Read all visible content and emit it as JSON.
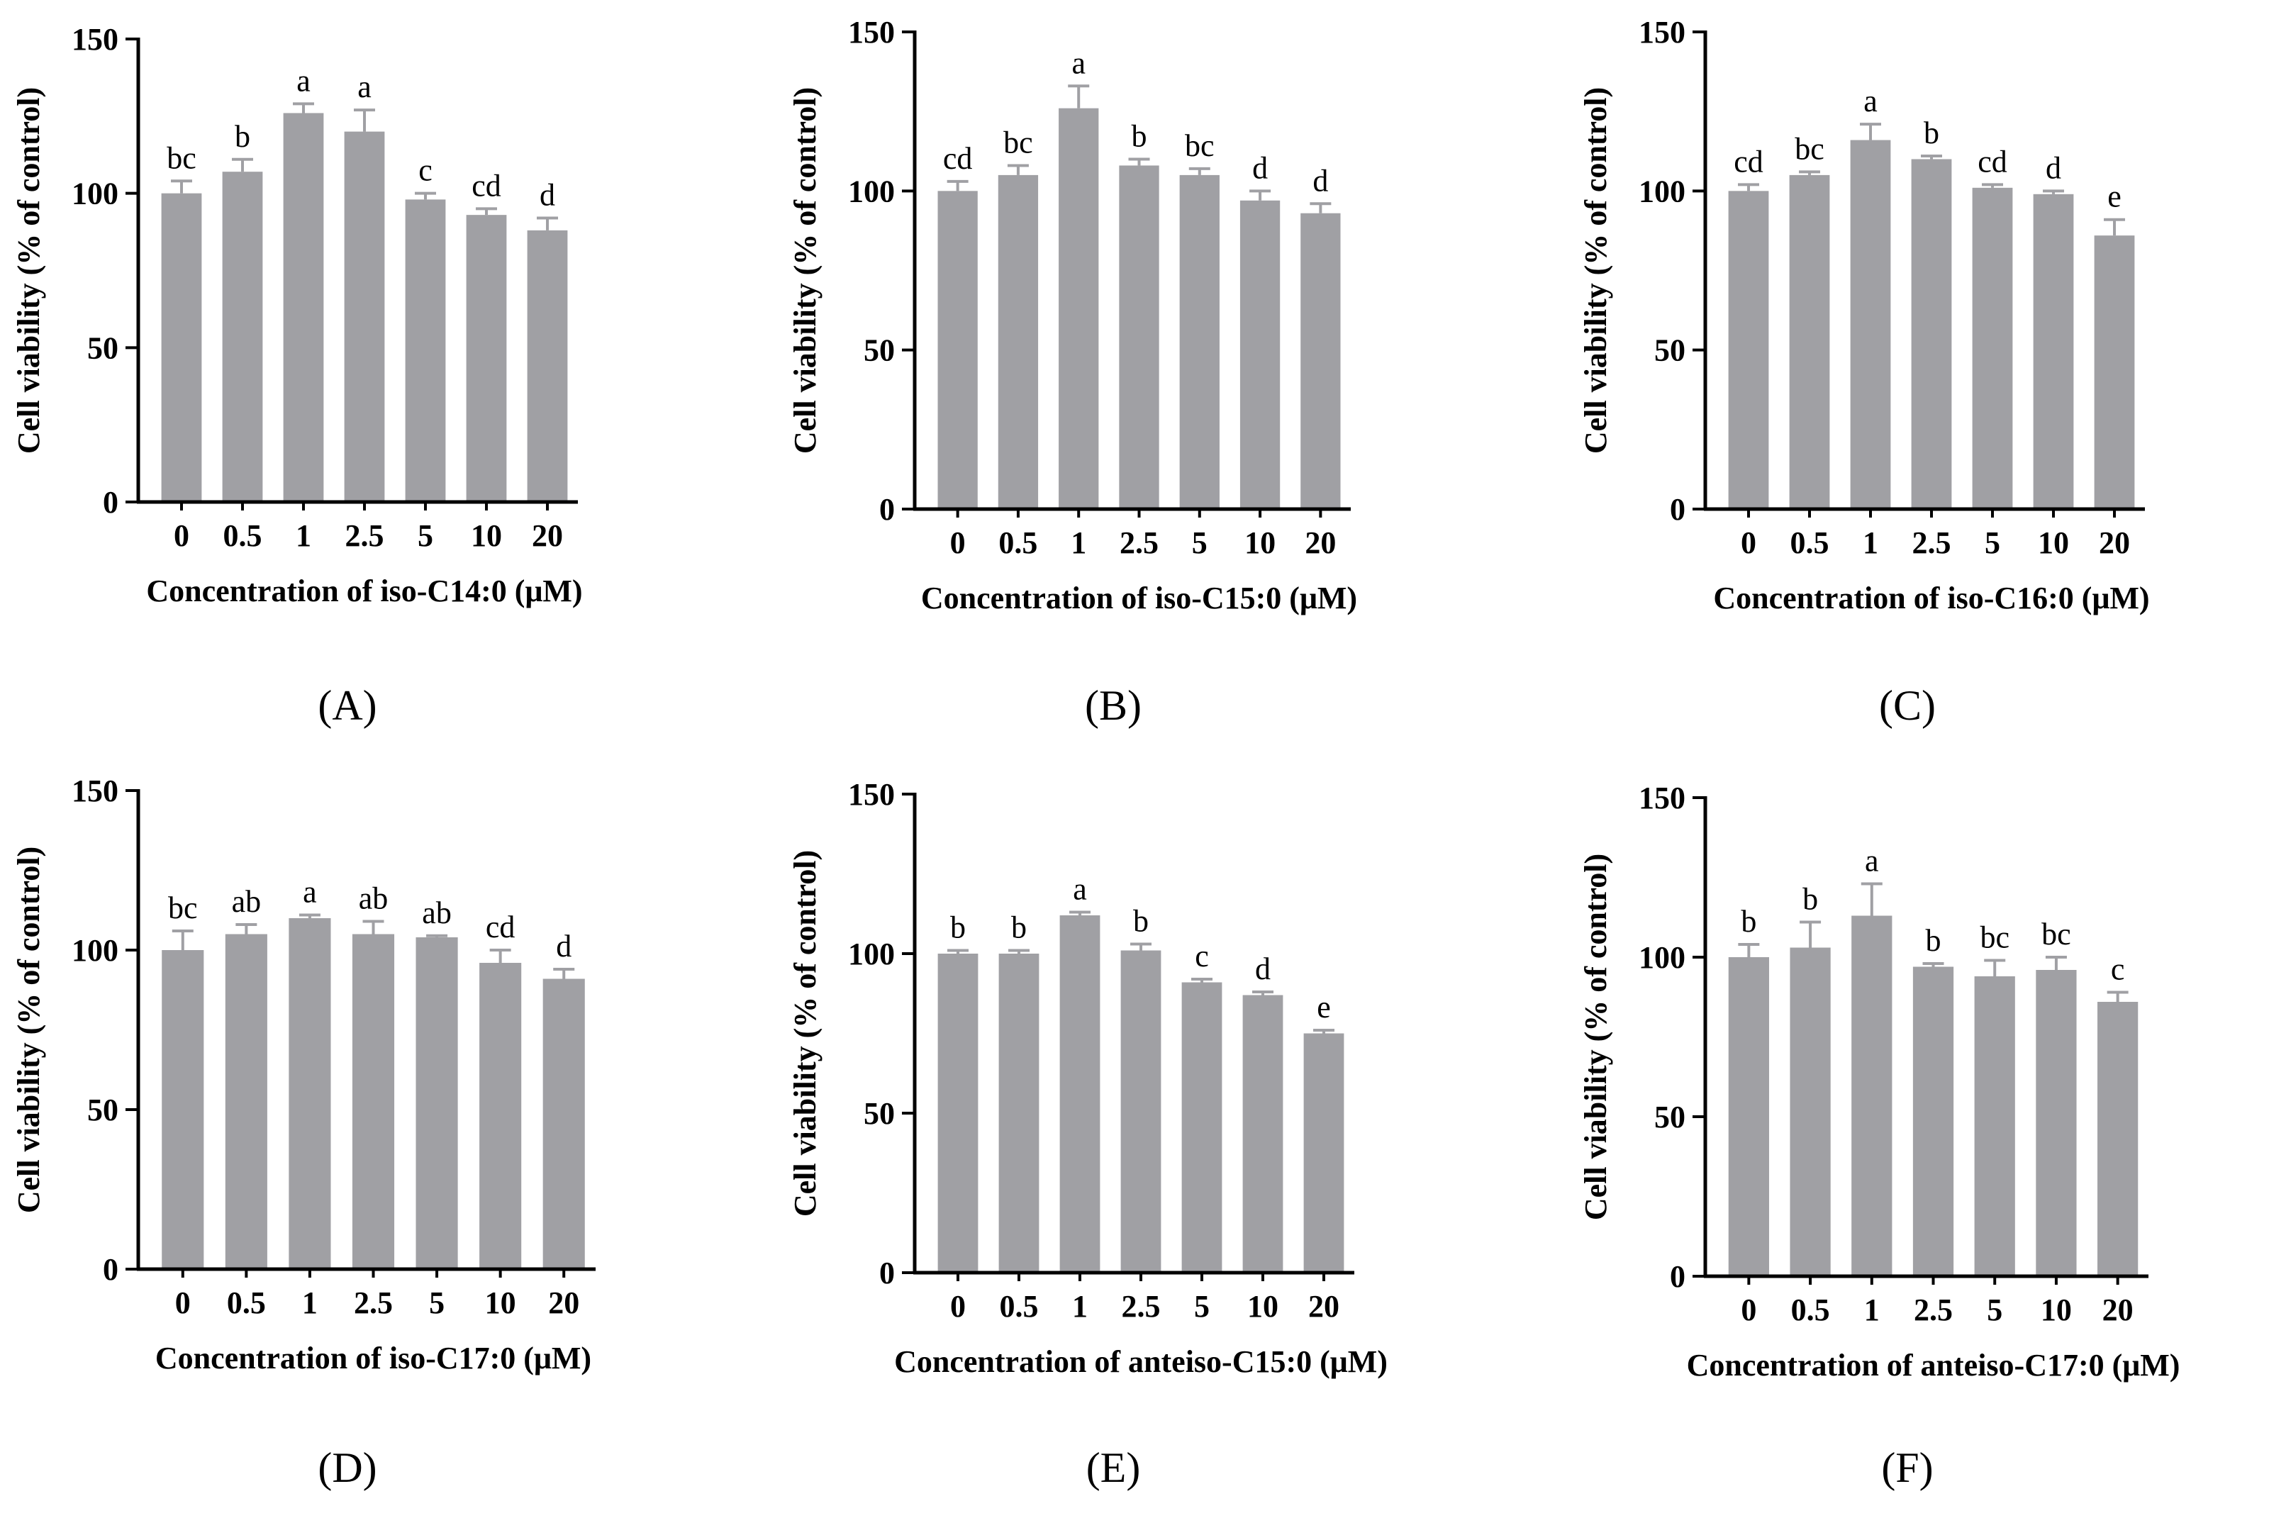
{
  "chart_data": [
    {
      "panel_label": "(A)",
      "type": "bar",
      "xlabel": "Concentration of iso-C14:0 (μM)",
      "ylabel": "Cell viability (% of control)",
      "categories": [
        "0",
        "0.5",
        "1",
        "2.5",
        "5",
        "10",
        "20"
      ],
      "values": [
        100,
        107,
        126,
        120,
        98,
        93,
        88
      ],
      "errors": [
        4,
        4,
        3,
        7,
        2,
        2,
        4
      ],
      "significance": [
        "bc",
        "b",
        "a",
        "a",
        "c",
        "cd",
        "d"
      ],
      "ylim": [
        0,
        150
      ],
      "yticks": [
        "0",
        "50",
        "100",
        "150"
      ],
      "bar_color": "#a0a0a4"
    },
    {
      "panel_label": "(B)",
      "type": "bar",
      "xlabel": "Concentration of iso-C15:0 (μM)",
      "ylabel": "Cell viability (% of control)",
      "categories": [
        "0",
        "0.5",
        "1",
        "2.5",
        "5",
        "10",
        "20"
      ],
      "values": [
        100,
        105,
        126,
        108,
        105,
        97,
        93
      ],
      "errors": [
        3,
        3,
        7,
        2,
        2,
        3,
        3
      ],
      "significance": [
        "cd",
        "bc",
        "a",
        "b",
        "bc",
        "d",
        "d"
      ],
      "ylim": [
        0,
        150
      ],
      "yticks": [
        "0",
        "50",
        "100",
        "150"
      ],
      "bar_color": "#a0a0a4"
    },
    {
      "panel_label": "(C)",
      "type": "bar",
      "xlabel": "Concentration of iso-C16:0 (μM)",
      "ylabel": "Cell viability (% of control)",
      "categories": [
        "0",
        "0.5",
        "1",
        "2.5",
        "5",
        "10",
        "20"
      ],
      "values": [
        100,
        105,
        116,
        110,
        101,
        99,
        86
      ],
      "errors": [
        2,
        1,
        5,
        1,
        1,
        1,
        5
      ],
      "significance": [
        "cd",
        "bc",
        "a",
        "b",
        "cd",
        "d",
        "e"
      ],
      "ylim": [
        0,
        150
      ],
      "yticks": [
        "0",
        "50",
        "100",
        "150"
      ],
      "bar_color": "#a0a0a4"
    },
    {
      "panel_label": "(D)",
      "type": "bar",
      "xlabel": "Concentration of iso-C17:0 (μM)",
      "ylabel": "Cell viability (% of control)",
      "categories": [
        "0",
        "0.5",
        "1",
        "2.5",
        "5",
        "10",
        "20"
      ],
      "values": [
        100,
        105,
        110,
        105,
        104,
        96,
        91
      ],
      "errors": [
        6,
        3,
        1,
        4,
        0.5,
        4,
        3
      ],
      "significance": [
        "bc",
        "ab",
        "a",
        "ab",
        "ab",
        "cd",
        "d"
      ],
      "ylim": [
        0,
        150
      ],
      "yticks": [
        "0",
        "50",
        "100",
        "150"
      ],
      "bar_color": "#a0a0a4"
    },
    {
      "panel_label": "(E)",
      "type": "bar",
      "xlabel": "Concentration of anteiso-C15:0 (μM)",
      "ylabel": "Cell viability (% of control)",
      "categories": [
        "0",
        "0.5",
        "1",
        "2.5",
        "5",
        "10",
        "20"
      ],
      "values": [
        100,
        100,
        112,
        101,
        91,
        87,
        75
      ],
      "errors": [
        1,
        1,
        1,
        2,
        1,
        1,
        1
      ],
      "significance": [
        "b",
        "b",
        "a",
        "b",
        "c",
        "d",
        "e"
      ],
      "ylim": [
        0,
        150
      ],
      "yticks": [
        "0",
        "50",
        "100",
        "150"
      ],
      "bar_color": "#a0a0a4"
    },
    {
      "panel_label": "(F)",
      "type": "bar",
      "xlabel": "Concentration of anteiso-C17:0 (μM)",
      "ylabel": "Cell viability (% of control)",
      "categories": [
        "0",
        "0.5",
        "1",
        "2.5",
        "5",
        "10",
        "20"
      ],
      "values": [
        100,
        103,
        113,
        97,
        94,
        96,
        86
      ],
      "errors": [
        4,
        8,
        10,
        1,
        5,
        4,
        3
      ],
      "significance": [
        "b",
        "b",
        "a",
        "b",
        "bc",
        "bc",
        "c"
      ],
      "ylim": [
        0,
        150
      ],
      "yticks": [
        "0",
        "50",
        "100",
        "150"
      ],
      "bar_color": "#a0a0a4"
    }
  ]
}
